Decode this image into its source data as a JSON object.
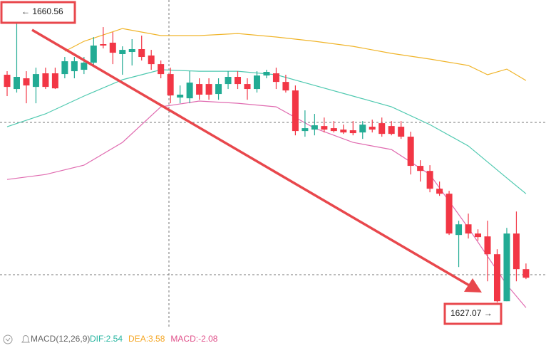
{
  "chart_data": {
    "type": "candlestick",
    "up_color": "#22ab94",
    "down_color": "#f23645",
    "ylim": [
      1623.95,
      1662.92
    ],
    "open": [
      1654.06,
      1652.37,
      1653.64,
      1652.62,
      1654.23,
      1654.23,
      1654.14,
      1654.48,
      1654.65,
      1655.49,
      1657.69,
      1657.86,
      1656.51,
      1656.76,
      1657.1,
      1656.34,
      1655.32,
      1654.14,
      1651.36,
      1651.27,
      1652.96,
      1652.96,
      1651.78,
      1652.96,
      1653.81,
      1652.96,
      1652.37,
      1653.97,
      1654.23,
      1653.21,
      1652.2,
      1647.39,
      1647.56,
      1647.98,
      1647.73,
      1647.56,
      1647.48,
      1647.22,
      1647.9,
      1648.32,
      1647.98,
      1647.9,
      1646.72,
      1643.26,
      1642.66,
      1640.55,
      1639.96,
      1635.07,
      1636.33,
      1635.24,
      1634.9,
      1632.79,
      1627.22,
      1635.24,
      1631.02
    ],
    "high": [
      1654.48,
      1660.56,
      1654.48,
      1654.9,
      1654.9,
      1654.9,
      1656.17,
      1656.17,
      1656.17,
      1658.53,
      1659.71,
      1659.12,
      1657.43,
      1658.28,
      1658.7,
      1657.01,
      1655.75,
      1654.9,
      1652.79,
      1654.48,
      1653.64,
      1653.64,
      1653.64,
      1654.48,
      1654.48,
      1653.64,
      1654.48,
      1654.65,
      1654.9,
      1654.06,
      1652.79,
      1649.84,
      1649.42,
      1648.99,
      1648.57,
      1648.15,
      1648.57,
      1648.57,
      1648.74,
      1648.99,
      1648.57,
      1648.57,
      1647.31,
      1643.93,
      1643.34,
      1641.4,
      1640.3,
      1636.76,
      1637.6,
      1635.74,
      1636.76,
      1633.38,
      1635.91,
      1637.85,
      1631.69
    ],
    "low": [
      1651.53,
      1651.95,
      1650.68,
      1650.68,
      1652.37,
      1652.37,
      1653.64,
      1653.64,
      1654.14,
      1655.16,
      1657.18,
      1655.32,
      1654.06,
      1655.16,
      1655.75,
      1654.65,
      1653.64,
      1650.68,
      1650.68,
      1650.68,
      1651.1,
      1651.1,
      1651.1,
      1652.37,
      1652.37,
      1651.1,
      1651.95,
      1653.64,
      1652.37,
      1651.95,
      1646.88,
      1646.72,
      1646.88,
      1647.22,
      1647.22,
      1647.05,
      1646.88,
      1646.46,
      1647.22,
      1646.72,
      1646.88,
      1646.46,
      1642.24,
      1641.4,
      1640.13,
      1639.71,
      1635.07,
      1631.27,
      1634.65,
      1634.39,
      1629.58,
      1627.07,
      1627.22,
      1629.58,
      1629.84
    ],
    "close": [
      1652.62,
      1653.81,
      1652.79,
      1654.14,
      1652.62,
      1652.45,
      1655.66,
      1655.66,
      1655.49,
      1657.52,
      1657.52,
      1656.67,
      1657.01,
      1657.1,
      1656.17,
      1655.32,
      1654.14,
      1651.61,
      1651.7,
      1653.13,
      1651.7,
      1651.7,
      1652.96,
      1653.81,
      1652.96,
      1652.37,
      1653.97,
      1654.4,
      1653.21,
      1652.2,
      1647.39,
      1647.73,
      1648.07,
      1647.56,
      1647.39,
      1647.22,
      1647.14,
      1648.15,
      1647.56,
      1647.05,
      1647.05,
      1646.72,
      1643.26,
      1642.66,
      1640.55,
      1639.96,
      1635.24,
      1636.33,
      1635.24,
      1634.82,
      1632.79,
      1627.22,
      1635.24,
      1631.02,
      1630.0
    ],
    "bands": [
      {
        "color": "#f0b429",
        "x": [
          6,
          8,
          12,
          16,
          20,
          24,
          28,
          32,
          36,
          40,
          44,
          48,
          50,
          52,
          54
        ],
        "values": [
          1656.84,
          1658.03,
          1659.54,
          1658.7,
          1658.7,
          1658.95,
          1658.53,
          1658.03,
          1657.43,
          1656.59,
          1655.92,
          1655.16,
          1654.06,
          1654.73,
          1653.38
        ]
      },
      {
        "color": "#4fc9b0",
        "x": [
          0,
          4,
          8,
          12,
          16,
          20,
          24,
          28,
          32,
          36,
          40,
          44,
          48,
          52,
          54
        ],
        "values": [
          1647.9,
          1649.42,
          1651.53,
          1653.47,
          1654.65,
          1654.48,
          1654.48,
          1654.06,
          1652.79,
          1651.53,
          1650.26,
          1648.15,
          1645.62,
          1641.82,
          1639.96
        ]
      },
      {
        "color": "#e06bb0",
        "x": [
          0,
          4,
          8,
          12,
          16,
          20,
          24,
          28,
          32,
          36,
          40,
          44,
          48,
          52,
          54
        ],
        "values": [
          1641.65,
          1642.24,
          1643.34,
          1646.04,
          1650.26,
          1650.94,
          1650.68,
          1650.26,
          1647.73,
          1646.04,
          1645.2,
          1642.24,
          1635.91,
          1629.16,
          1626.46
        ]
      }
    ],
    "max_label": "← 1660.56",
    "min_label": "1627.07 →",
    "macd_legend": {
      "title": "MACD(12,26,9)",
      "items": [
        "DIF:2.54",
        "DEA:3.58",
        "MACD:-2.08"
      ],
      "colors": [
        "#26b5a0",
        "#f5a623",
        "#e0508a"
      ]
    }
  }
}
